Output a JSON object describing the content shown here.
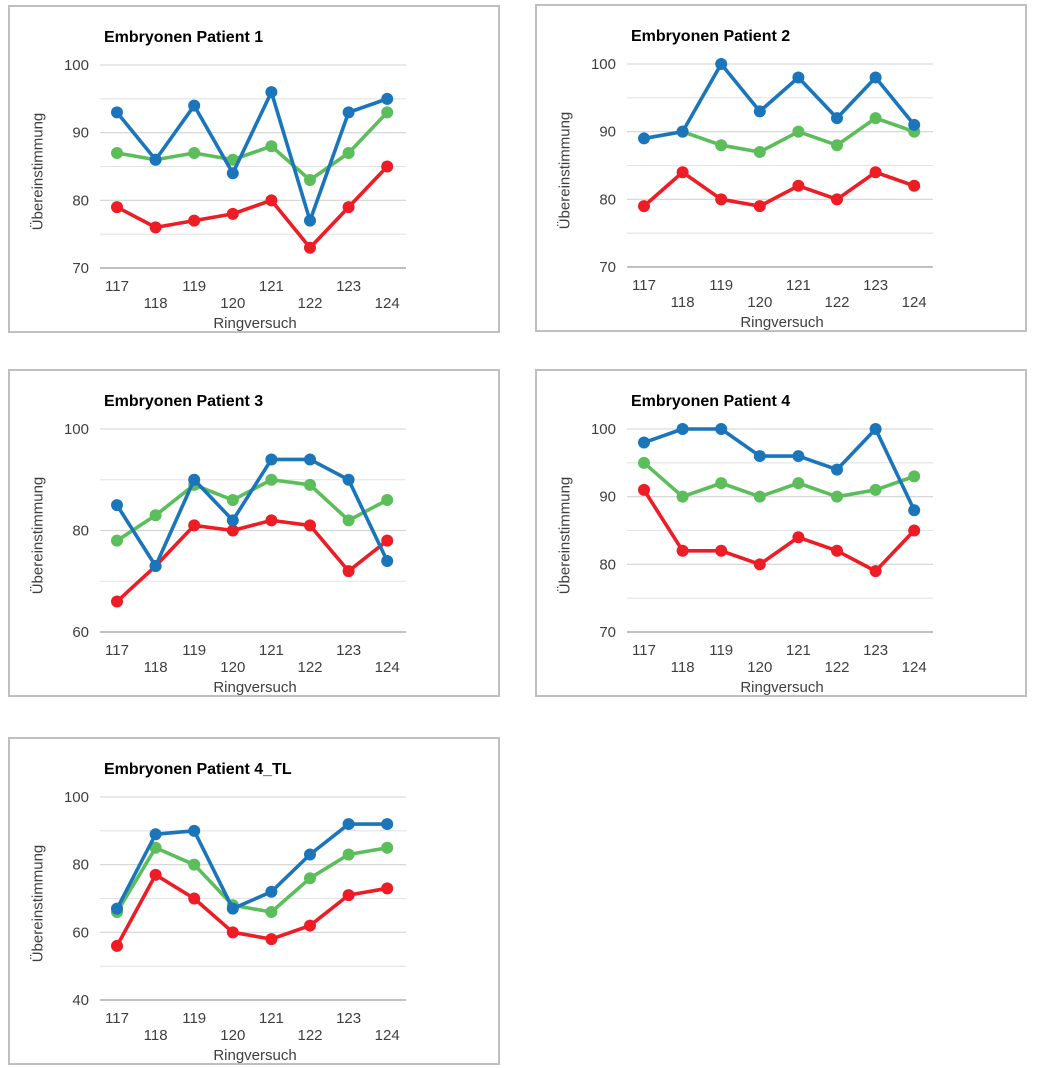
{
  "colors": {
    "series_blue": "#1b75bb",
    "series_green": "#5bbe5b",
    "series_red": "#ee1c25",
    "grid_major": "#d2d2d2",
    "grid_minor": "#e4e4e4",
    "axis_line": "#ababab",
    "tick_text": "#3f3f3f",
    "panel_border": "#bfbfbf"
  },
  "chart_data": [
    {
      "type": "line",
      "title": "Embryonen Patient 1",
      "xlabel": "Ringversuch",
      "ylabel": "Übereinstimmung",
      "x": [
        117,
        118,
        119,
        120,
        121,
        122,
        123,
        124
      ],
      "ylim": [
        70,
        100
      ],
      "grid_step": 5,
      "label_step": 10,
      "grid": true,
      "legend": "none",
      "series": [
        {
          "name": "series-blue",
          "color_key": "series_blue",
          "values": [
            93,
            86,
            94,
            84,
            96,
            77,
            93,
            95
          ]
        },
        {
          "name": "series-green",
          "color_key": "series_green",
          "values": [
            87,
            86,
            87,
            86,
            88,
            83,
            87,
            93
          ]
        },
        {
          "name": "series-red",
          "color_key": "series_red",
          "values": [
            79,
            76,
            77,
            78,
            80,
            73,
            79,
            85
          ]
        }
      ]
    },
    {
      "type": "line",
      "title": "Embryonen Patient 2",
      "xlabel": "Ringversuch",
      "ylabel": "Übereinstimmung",
      "x": [
        117,
        118,
        119,
        120,
        121,
        122,
        123,
        124
      ],
      "ylim": [
        70,
        100
      ],
      "grid_step": 5,
      "label_step": 10,
      "grid": true,
      "legend": "none",
      "series": [
        {
          "name": "series-blue",
          "color_key": "series_blue",
          "values": [
            89,
            90,
            100,
            93,
            98,
            92,
            98,
            91
          ]
        },
        {
          "name": "series-green",
          "color_key": "series_green",
          "values": [
            null,
            90,
            88,
            87,
            90,
            88,
            92,
            90
          ]
        },
        {
          "name": "series-red",
          "color_key": "series_red",
          "values": [
            79,
            84,
            80,
            79,
            82,
            80,
            84,
            82
          ]
        }
      ]
    },
    {
      "type": "line",
      "title": "Embryonen Patient 3",
      "xlabel": "Ringversuch",
      "ylabel": "Übereinstimmung",
      "x": [
        117,
        118,
        119,
        120,
        121,
        122,
        123,
        124
      ],
      "ylim": [
        60,
        100
      ],
      "grid_step": 10,
      "label_step": 20,
      "grid": true,
      "legend": "none",
      "series": [
        {
          "name": "series-blue",
          "color_key": "series_blue",
          "values": [
            85,
            73,
            90,
            82,
            94,
            94,
            90,
            74
          ]
        },
        {
          "name": "series-green",
          "color_key": "series_green",
          "values": [
            78,
            83,
            89,
            86,
            90,
            89,
            82,
            86
          ]
        },
        {
          "name": "series-red",
          "color_key": "series_red",
          "values": [
            66,
            73,
            81,
            80,
            82,
            81,
            72,
            78
          ]
        }
      ]
    },
    {
      "type": "line",
      "title": "Embryonen Patient 4",
      "xlabel": "Ringversuch",
      "ylabel": "Übereinstimmung",
      "x": [
        117,
        118,
        119,
        120,
        121,
        122,
        123,
        124
      ],
      "ylim": [
        70,
        100
      ],
      "grid_step": 5,
      "label_step": 10,
      "grid": true,
      "legend": "none",
      "series": [
        {
          "name": "series-blue",
          "color_key": "series_blue",
          "values": [
            98,
            100,
            100,
            96,
            96,
            94,
            100,
            88
          ]
        },
        {
          "name": "series-green",
          "color_key": "series_green",
          "values": [
            95,
            90,
            92,
            90,
            92,
            90,
            91,
            93
          ]
        },
        {
          "name": "series-red",
          "color_key": "series_red",
          "values": [
            91,
            82,
            82,
            80,
            84,
            82,
            79,
            85
          ]
        }
      ]
    },
    {
      "type": "line",
      "title": "Embryonen Patient 4_TL",
      "xlabel": "Ringversuch",
      "ylabel": "Übereinstimmung",
      "x": [
        117,
        118,
        119,
        120,
        121,
        122,
        123,
        124
      ],
      "ylim": [
        40,
        100
      ],
      "grid_step": 10,
      "label_step": 20,
      "grid": true,
      "legend": "none",
      "series": [
        {
          "name": "series-blue",
          "color_key": "series_blue",
          "values": [
            67,
            89,
            90,
            67,
            72,
            83,
            92,
            92
          ]
        },
        {
          "name": "series-green",
          "color_key": "series_green",
          "values": [
            66,
            85,
            80,
            68,
            66,
            76,
            83,
            85
          ]
        },
        {
          "name": "series-red",
          "color_key": "series_red",
          "values": [
            56,
            77,
            70,
            60,
            58,
            62,
            71,
            73
          ]
        }
      ]
    }
  ]
}
